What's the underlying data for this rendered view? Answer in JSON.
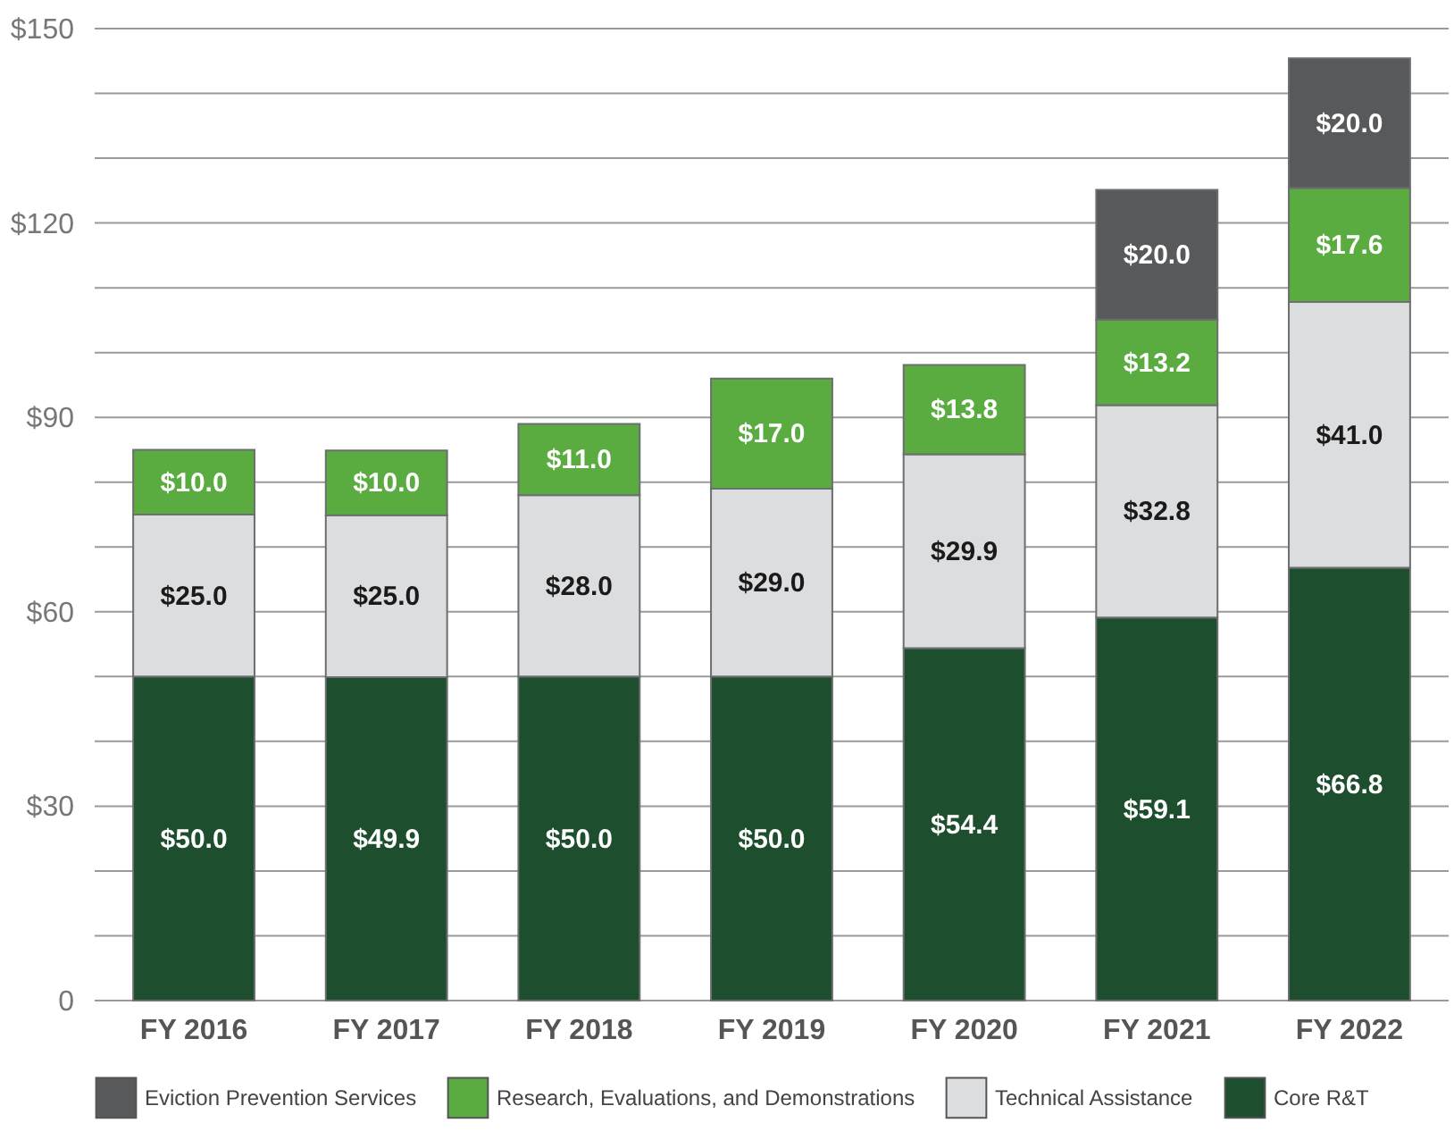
{
  "chart_data": {
    "type": "bar",
    "stacked": true,
    "categories": [
      "FY 2016",
      "FY 2017",
      "FY 2018",
      "FY 2019",
      "FY 2020",
      "FY 2021",
      "FY 2022"
    ],
    "series": [
      {
        "name": "Core R&T",
        "color": "#1d4f2e",
        "values": [
          50.0,
          49.9,
          50.0,
          50.0,
          54.4,
          59.1,
          66.8
        ],
        "value_labels": [
          "$50.0",
          "$49.9",
          "$50.0",
          "$50.0",
          "$54.4",
          "$59.1",
          "$66.8"
        ]
      },
      {
        "name": "Technical Assistance",
        "color": "#dcdddf",
        "values": [
          25.0,
          25.0,
          28.0,
          29.0,
          29.9,
          32.8,
          41.0
        ],
        "value_labels": [
          "$25.0",
          "$25.0",
          "$28.0",
          "$29.0",
          "$29.9",
          "$32.8",
          "$41.0"
        ]
      },
      {
        "name": "Research, Evaluations, and Demonstrations",
        "color": "#5aab40",
        "values": [
          10.0,
          10.0,
          11.0,
          17.0,
          13.8,
          13.2,
          17.6
        ],
        "value_labels": [
          "$10.0",
          "$10.0",
          "$11.0",
          "$17.0",
          "$13.8",
          "$13.2",
          "$17.6"
        ]
      },
      {
        "name": "Eviction Prevention Services",
        "color": "#58595b",
        "values": [
          null,
          null,
          null,
          null,
          null,
          20.0,
          20.0
        ],
        "value_labels": [
          null,
          null,
          null,
          null,
          null,
          "$20.0",
          "$20.0"
        ]
      }
    ],
    "ylim": [
      0,
      150
    ],
    "yticks": [
      {
        "value": 0,
        "label": "0"
      },
      {
        "value": 10,
        "label": null
      },
      {
        "value": 20,
        "label": null
      },
      {
        "value": 30,
        "label": "$30"
      },
      {
        "value": 40,
        "label": null
      },
      {
        "value": 50,
        "label": null
      },
      {
        "value": 60,
        "label": "$60"
      },
      {
        "value": 70,
        "label": null
      },
      {
        "value": 80,
        "label": null
      },
      {
        "value": 90,
        "label": "$90"
      },
      {
        "value": 100,
        "label": null
      },
      {
        "value": 110,
        "label": null
      },
      {
        "value": 120,
        "label": "$120"
      },
      {
        "value": 130,
        "label": null
      },
      {
        "value": 140,
        "label": null
      },
      {
        "value": 150,
        "label": "$150"
      }
    ],
    "grid": "y",
    "legend": "bottom"
  }
}
